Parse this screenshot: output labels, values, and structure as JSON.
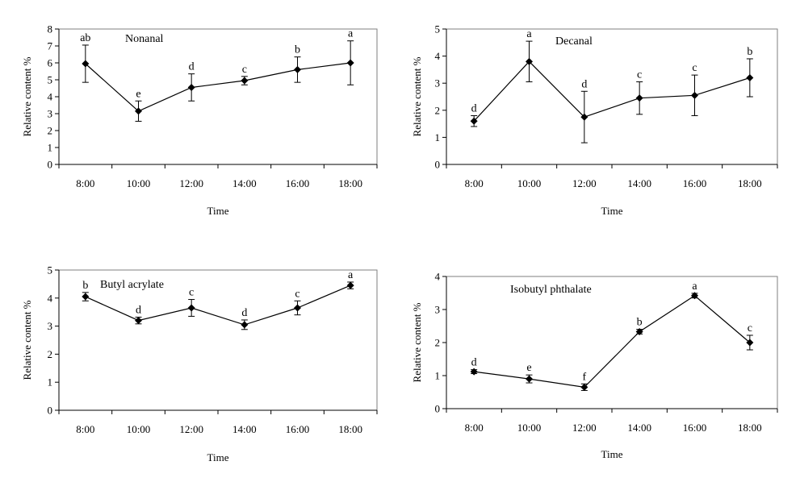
{
  "chart_data": [
    {
      "type": "line",
      "title": "Nonanal",
      "xlabel": "Time",
      "ylabel": "Relative content %",
      "categories": [
        "8:00",
        "10:00",
        "12:00",
        "14:00",
        "16:00",
        "18:00"
      ],
      "values": [
        5.95,
        3.15,
        4.55,
        4.95,
        5.6,
        6.0
      ],
      "errors": [
        1.1,
        0.6,
        0.8,
        0.25,
        0.75,
        1.3
      ],
      "letters": [
        "ab",
        "e",
        "d",
        "c",
        "b",
        "a"
      ],
      "ylim": [
        0,
        8
      ],
      "yticks": [
        "0",
        "1",
        "2",
        "3",
        "4",
        "5",
        "6",
        "7",
        "8"
      ]
    },
    {
      "type": "line",
      "title": "Decanal",
      "xlabel": "Time",
      "ylabel": "Relative content %",
      "categories": [
        "8:00",
        "10:00",
        "12:00",
        "14:00",
        "16:00",
        "18:00"
      ],
      "values": [
        1.6,
        3.8,
        1.75,
        2.45,
        2.55,
        3.2
      ],
      "errors": [
        0.2,
        0.75,
        0.95,
        0.6,
        0.75,
        0.7
      ],
      "letters": [
        "d",
        "a",
        "d",
        "c",
        "c",
        "b"
      ],
      "ylim": [
        0,
        5
      ],
      "yticks": [
        "0",
        "1",
        "2",
        "3",
        "4",
        "5"
      ]
    },
    {
      "type": "line",
      "title": "Butyl acrylate",
      "xlabel": "Time",
      "ylabel": "Relative content %",
      "categories": [
        "8:00",
        "10:00",
        "12:00",
        "14:00",
        "16:00",
        "18:00"
      ],
      "values": [
        4.05,
        3.2,
        3.65,
        3.05,
        3.65,
        4.45
      ],
      "errors": [
        0.15,
        0.12,
        0.3,
        0.17,
        0.25,
        0.12
      ],
      "letters": [
        "b",
        "d",
        "c",
        "d",
        "c",
        "a"
      ],
      "ylim": [
        0,
        5
      ],
      "yticks": [
        "0",
        "1",
        "2",
        "3",
        "4",
        "5"
      ]
    },
    {
      "type": "line",
      "title": "Isobutyl phthalate",
      "xlabel": "Time",
      "ylabel": "Relative content %",
      "categories": [
        "8:00",
        "10:00",
        "12:00",
        "14:00",
        "16:00",
        "18:00"
      ],
      "values": [
        1.12,
        0.9,
        0.65,
        2.33,
        3.42,
        2.0
      ],
      "errors": [
        0.06,
        0.12,
        0.1,
        0.07,
        0.07,
        0.22
      ],
      "letters": [
        "d",
        "e",
        "f",
        "b",
        "a",
        "c"
      ],
      "ylim": [
        0,
        4
      ],
      "yticks": [
        "0",
        "1",
        "2",
        "3",
        "4"
      ]
    }
  ]
}
